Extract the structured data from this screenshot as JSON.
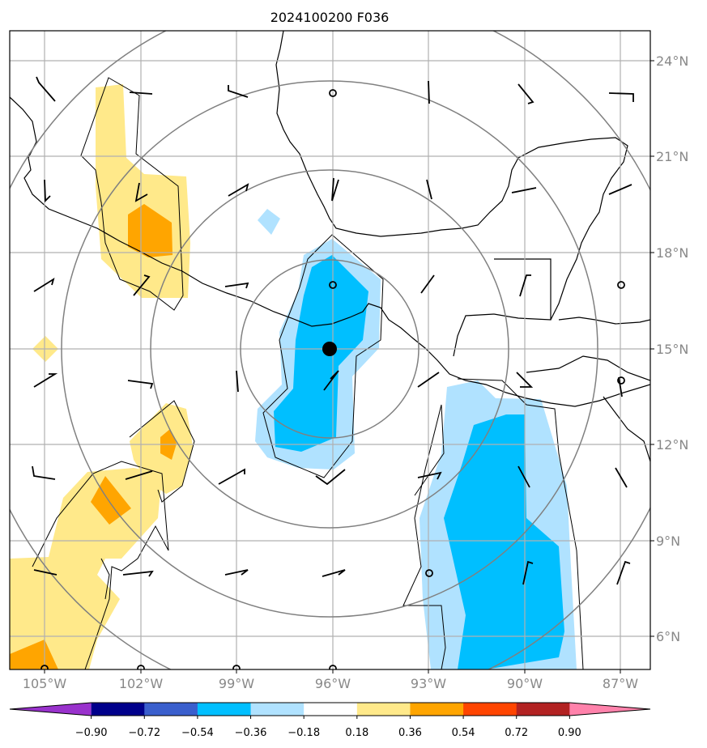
{
  "title": "2024100200 F036",
  "map": {
    "lon_range": [
      -106,
      -86
    ],
    "lat_range": [
      5,
      25
    ],
    "lat_ticks": [
      {
        "value": 24,
        "label": "24°N"
      },
      {
        "value": 21,
        "label": "21°N"
      },
      {
        "value": 18,
        "label": "18°N"
      },
      {
        "value": 15,
        "label": "15°N"
      },
      {
        "value": 12,
        "label": "12°N"
      },
      {
        "value": 9,
        "label": "9°N"
      },
      {
        "value": 6,
        "label": "6°N"
      }
    ],
    "lon_ticks": [
      {
        "value": -105,
        "label": "105°W"
      },
      {
        "value": -102,
        "label": "102°W"
      },
      {
        "value": -99,
        "label": "99°W"
      },
      {
        "value": -96,
        "label": "96°W"
      },
      {
        "value": -93,
        "label": "93°W"
      },
      {
        "value": -90,
        "label": "90°W"
      },
      {
        "value": -87,
        "label": "87°W"
      }
    ],
    "center_marker": {
      "lon": -96,
      "lat": 15
    },
    "range_ring_radii_deg": [
      2.8,
      5.6,
      8.4,
      11.2
    ]
  },
  "colorbar": {
    "ticks": [
      "−0.90",
      "−0.72",
      "−0.54",
      "−0.36",
      "−0.18",
      "0.18",
      "0.36",
      "0.54",
      "0.72",
      "0.90"
    ],
    "colors": [
      "#9932cc",
      "#00008b",
      "#3a5fcd",
      "#00bfff",
      "#b0e2ff",
      "#ffffff",
      "#ffe98a",
      "#ffa500",
      "#ff4500",
      "#b22222",
      "#ff82ab"
    ]
  },
  "legend_colors": {
    "positive_light": "#ffe98a",
    "positive_mid": "#ffa500",
    "negative_light": "#b0e2ff",
    "negative_mid": "#00bfff",
    "rings": "#808080",
    "grid": "#b0b0b0"
  }
}
